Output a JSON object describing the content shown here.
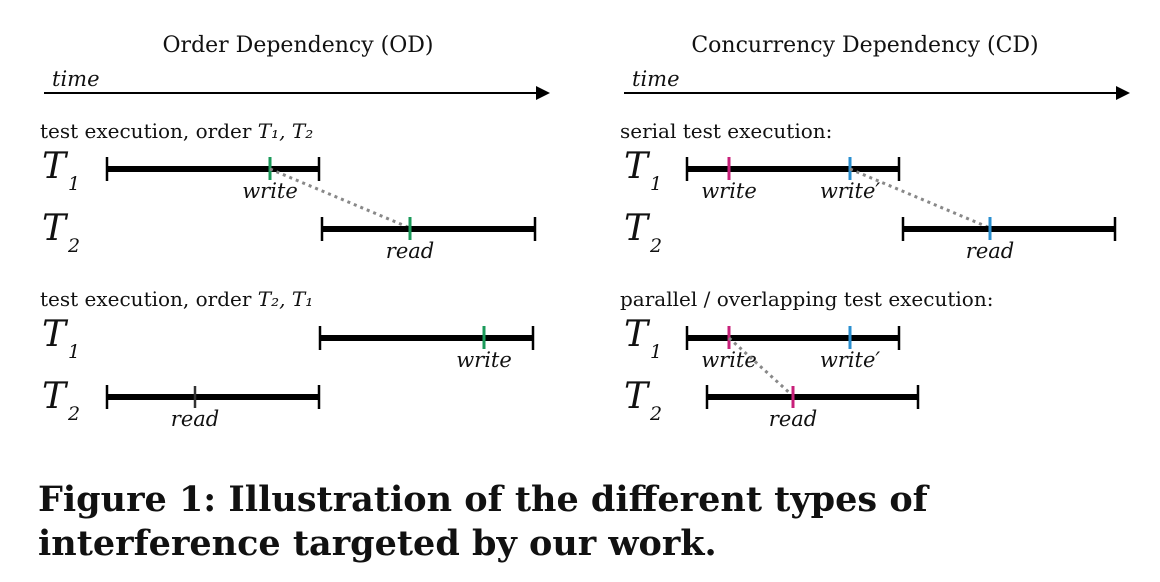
{
  "panels": {
    "od": {
      "title": "Order Dependency (OD)",
      "time_label": "time",
      "section1": {
        "label_prefix": "test execution, order ",
        "math": "T₁, T₂"
      },
      "section2": {
        "label_prefix": "test execution, order ",
        "math": "T₂, T₁"
      }
    },
    "cd": {
      "title": "Concurrency Dependency (CD)",
      "time_label": "time",
      "section1": {
        "label": "serial test execution:"
      },
      "section2": {
        "label": "parallel / overlapping test execution:"
      }
    }
  },
  "threads": {
    "t1": "T",
    "t1_sub": "1",
    "t2": "T",
    "t2_sub": "2"
  },
  "events": {
    "write": "write",
    "read": "read",
    "write_prime": "write′"
  },
  "colors": {
    "line": "#000000",
    "dotted": "#888888",
    "green": "#1a9a5a",
    "magenta": "#c8207a",
    "blue": "#2a8fd0"
  },
  "caption": "Figure 1: Illustration of the different types of interference targeted by our work."
}
